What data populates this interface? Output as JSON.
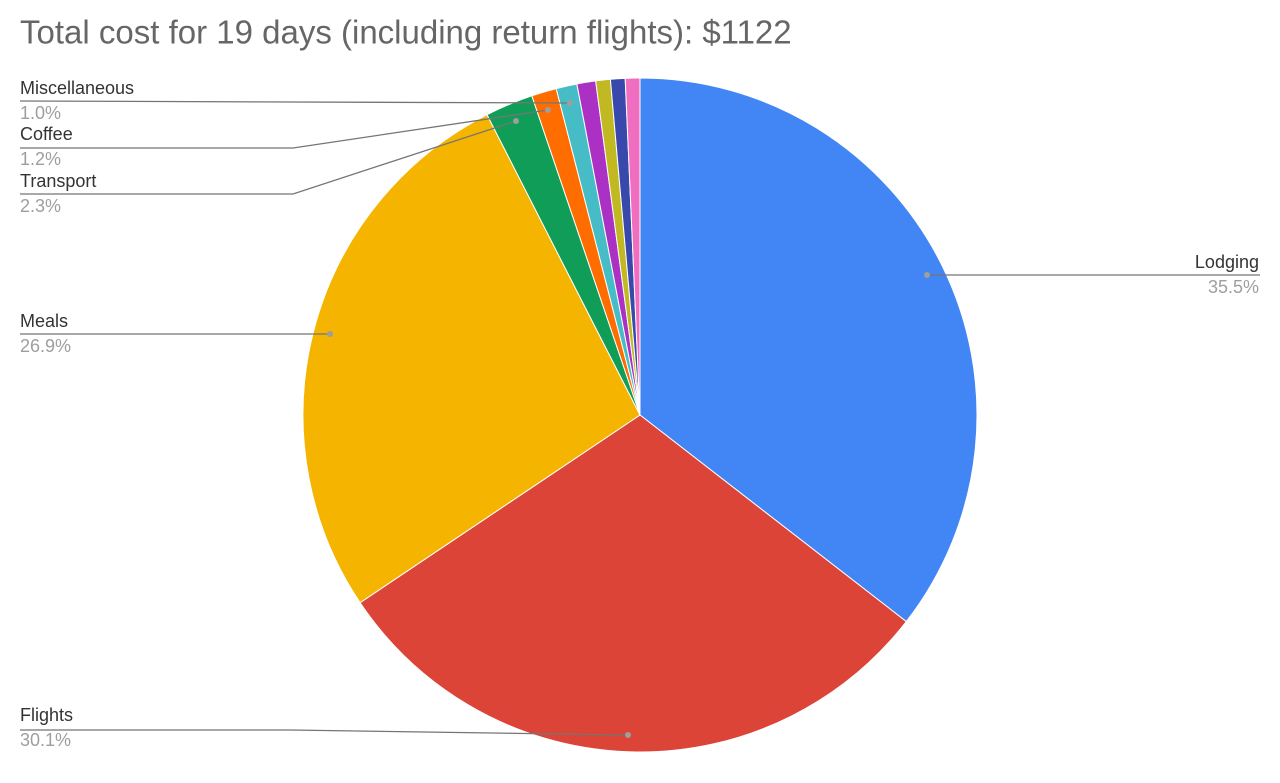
{
  "chart_data": {
    "type": "pie",
    "title": "Total cost for 19 days (including return flights): $1122",
    "categories": [
      "Lodging",
      "Flights",
      "Meals",
      "Transport",
      "Coffee",
      "Miscellaneous",
      null,
      null,
      null,
      null
    ],
    "values": [
      35.5,
      30.1,
      26.9,
      2.3,
      1.2,
      1.0,
      0.9,
      0.7,
      0.7,
      0.7
    ],
    "value_labels": [
      "35.5%",
      "30.1%",
      "26.9%",
      "2.3%",
      "1.2%",
      "1.0%",
      null,
      null,
      null,
      null
    ],
    "colors": [
      "#4285f4",
      "#db4437",
      "#f4b400",
      "#0f9d58",
      "#ff6d01",
      "#46bdc6",
      "#ab30c4",
      "#c0b921",
      "#3949ab",
      "#f06ebf"
    ]
  }
}
